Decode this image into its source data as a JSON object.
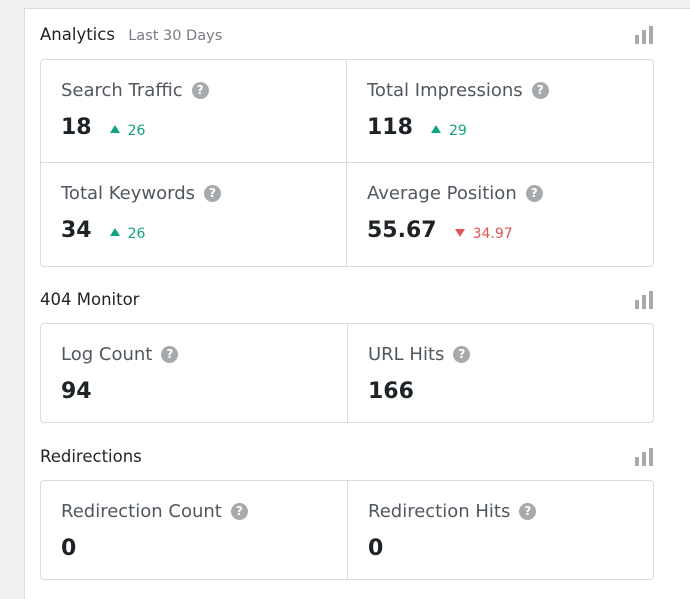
{
  "colors": {
    "up": "#10a37f",
    "down": "#e05555",
    "icon_gray": "#a7aaad",
    "border": "#dcdcde"
  },
  "analytics": {
    "title": "Analytics",
    "subtitle": "Last 30 Days",
    "chart_icon": "bar-chart-icon",
    "stats": [
      {
        "label": "Search Traffic",
        "value": "18",
        "delta": "26",
        "direction": "up"
      },
      {
        "label": "Total Impressions",
        "value": "118",
        "delta": "29",
        "direction": "up"
      },
      {
        "label": "Total Keywords",
        "value": "34",
        "delta": "26",
        "direction": "up"
      },
      {
        "label": "Average Position",
        "value": "55.67",
        "delta": "34.97",
        "direction": "down"
      }
    ]
  },
  "monitor": {
    "title": "404 Monitor",
    "chart_icon": "bar-chart-icon",
    "stats": [
      {
        "label": "Log Count",
        "value": "94"
      },
      {
        "label": "URL Hits",
        "value": "166"
      }
    ]
  },
  "redirections": {
    "title": "Redirections",
    "chart_icon": "bar-chart-icon",
    "stats": [
      {
        "label": "Redirection Count",
        "value": "0"
      },
      {
        "label": "Redirection Hits",
        "value": "0"
      }
    ]
  }
}
